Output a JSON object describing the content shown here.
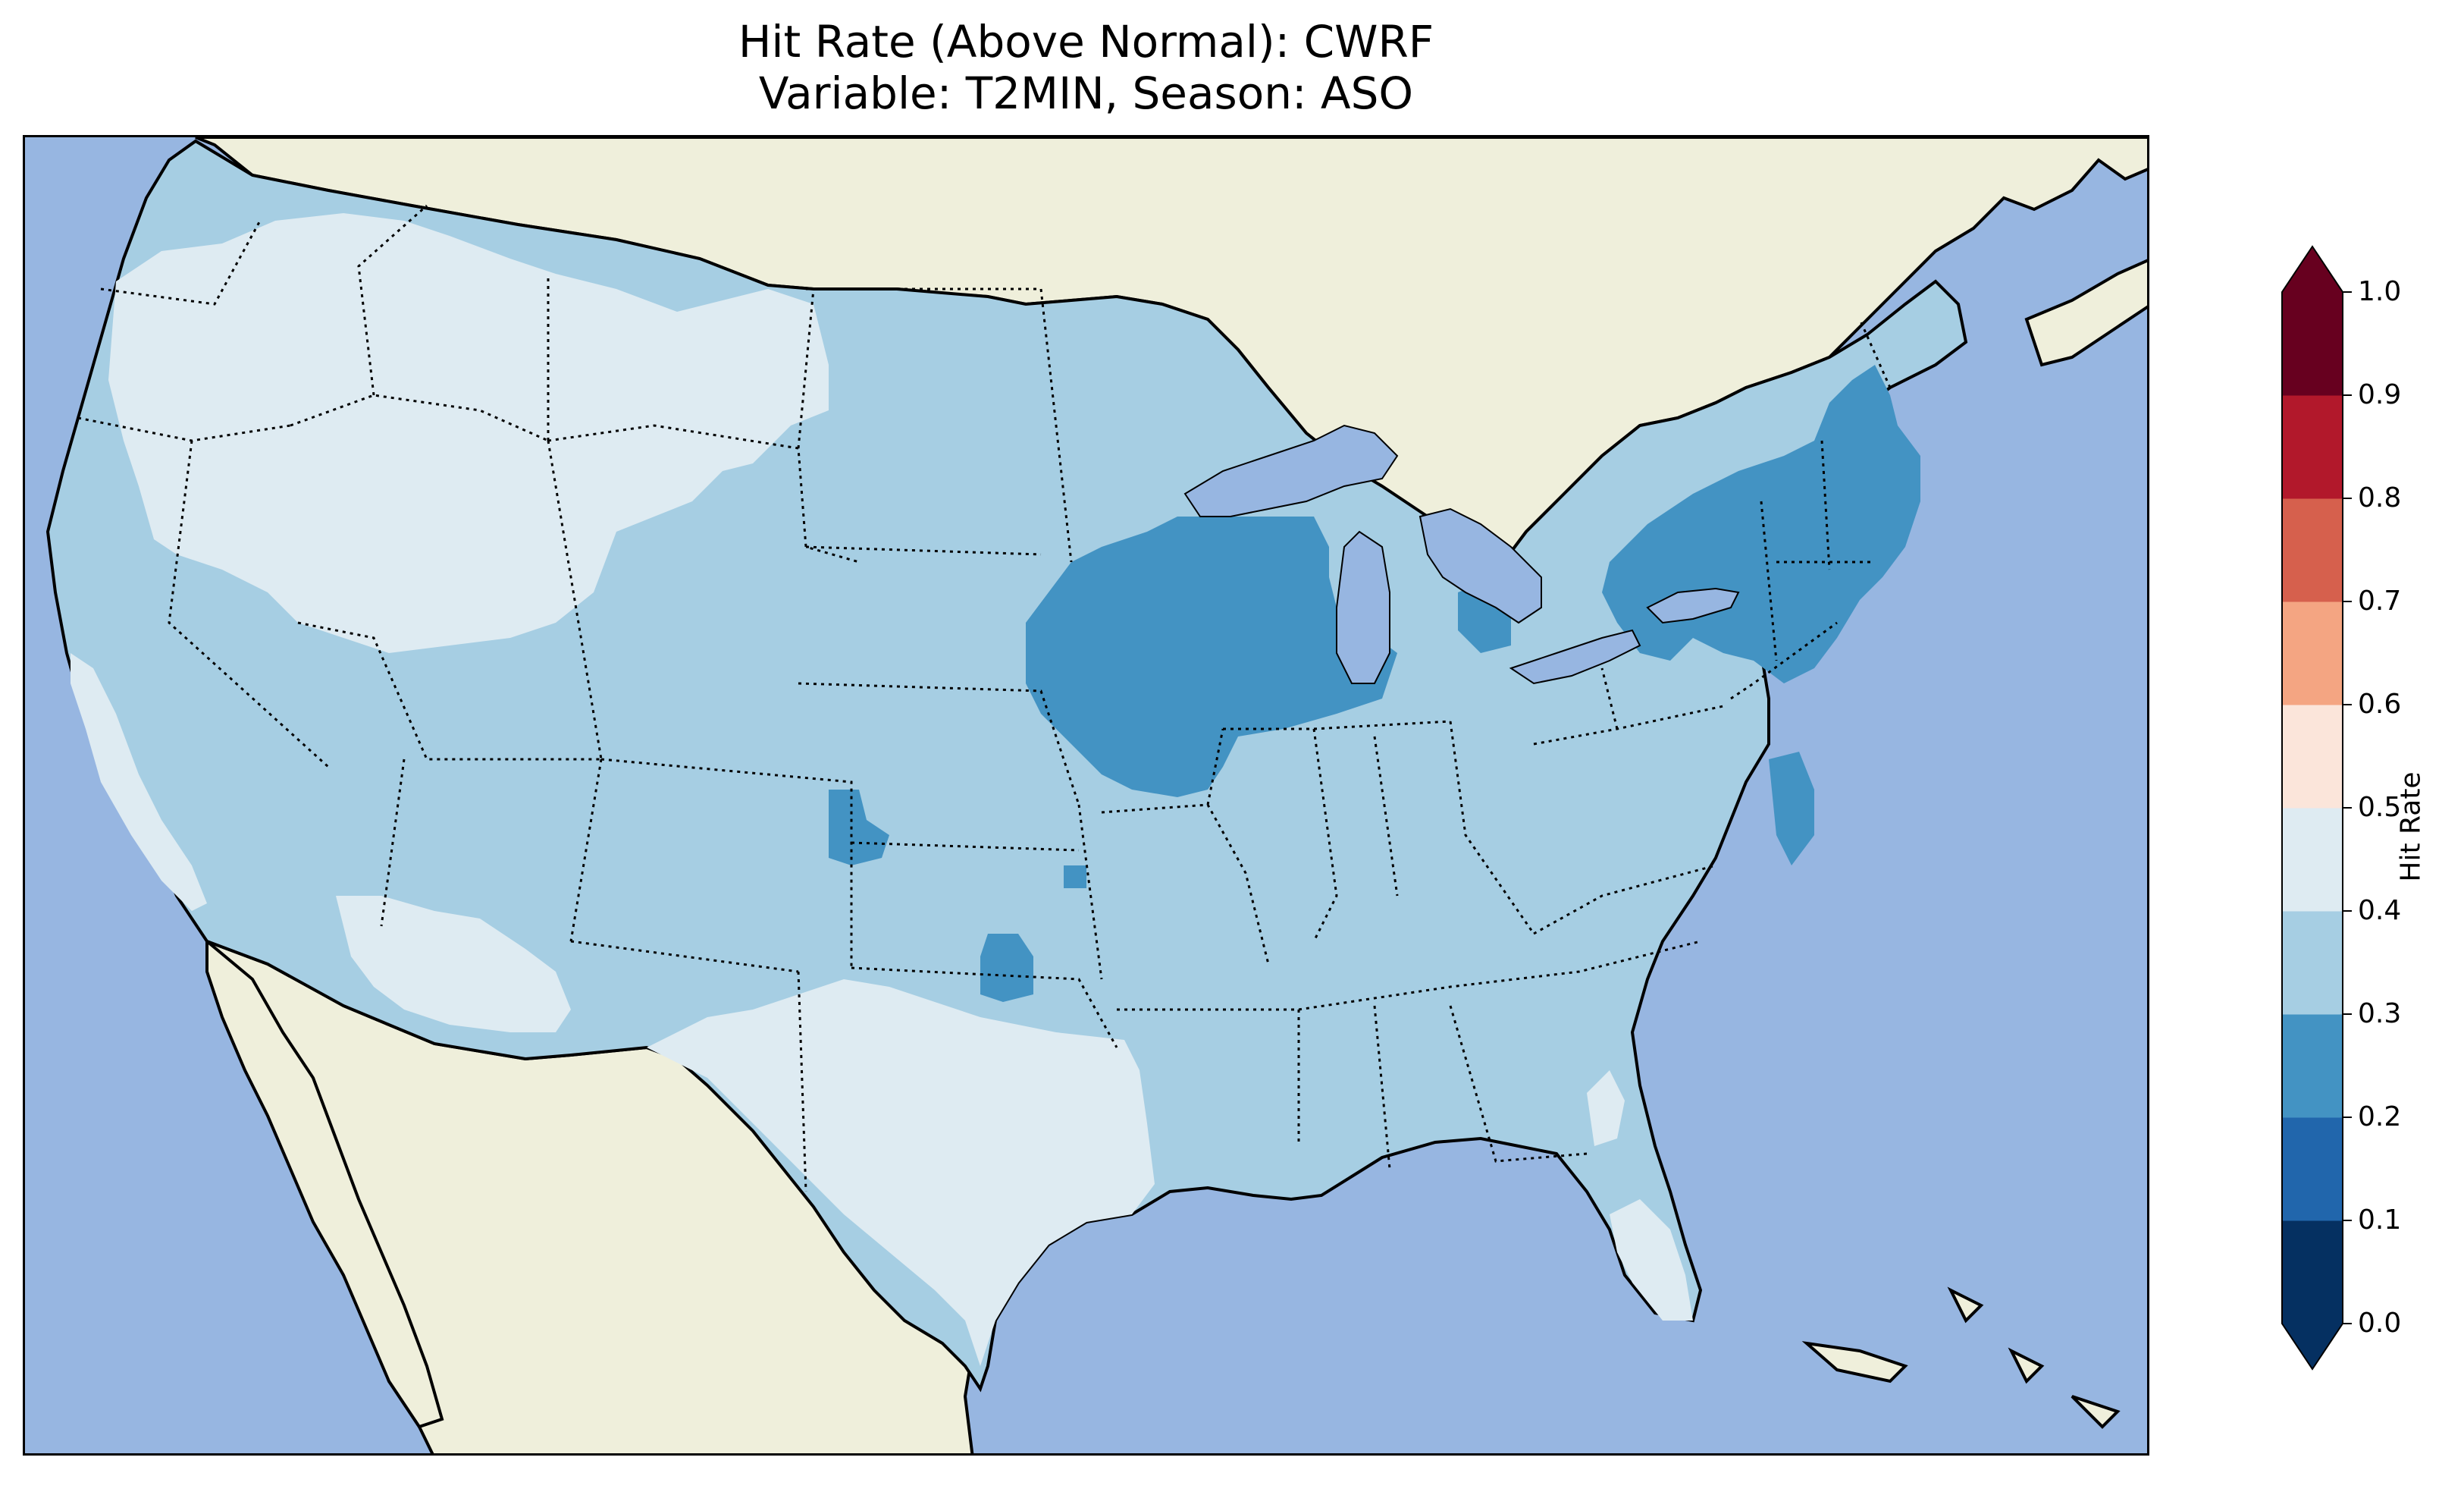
{
  "title": {
    "line1": "Hit Rate (Above Normal): CWRF",
    "line2": "Variable: T2MIN, Season: ASO"
  },
  "colors": {
    "ocean": "#97b6e1",
    "land": "#efefdb",
    "coast": "#000000"
  },
  "colorbar": {
    "label": "Hit Rate",
    "ticks": [
      "0.0",
      "0.1",
      "0.2",
      "0.3",
      "0.4",
      "0.5",
      "0.6",
      "0.7",
      "0.8",
      "0.9",
      "1.0"
    ],
    "bins": [
      {
        "range": [
          0.0,
          0.1
        ],
        "color": "#053061"
      },
      {
        "range": [
          0.1,
          0.2
        ],
        "color": "#2166ac"
      },
      {
        "range": [
          0.2,
          0.3
        ],
        "color": "#4393c3"
      },
      {
        "range": [
          0.3,
          0.4
        ],
        "color": "#a6cee3"
      },
      {
        "range": [
          0.4,
          0.5
        ],
        "color": "#deebf2"
      },
      {
        "range": [
          0.5,
          0.6
        ],
        "color": "#fbe5da"
      },
      {
        "range": [
          0.6,
          0.7
        ],
        "color": "#f4a582"
      },
      {
        "range": [
          0.7,
          0.8
        ],
        "color": "#d6604d"
      },
      {
        "range": [
          0.8,
          0.9
        ],
        "color": "#b2182b"
      },
      {
        "range": [
          0.9,
          1.0
        ],
        "color": "#67001f"
      }
    ],
    "extend": "both"
  },
  "map": {
    "region": "Contiguous United States",
    "dominant_bin": "0.3-0.4",
    "regions": [
      {
        "name": "West / Intermountain",
        "bin": "0.4-0.5"
      },
      {
        "name": "Upper Midwest",
        "bin": "0.2-0.3"
      },
      {
        "name": "Northeast",
        "bin": "0.2-0.3"
      },
      {
        "name": "Texas",
        "bin": "0.4-0.5"
      },
      {
        "name": "Florida",
        "bin": "0.4-0.5"
      }
    ]
  }
}
